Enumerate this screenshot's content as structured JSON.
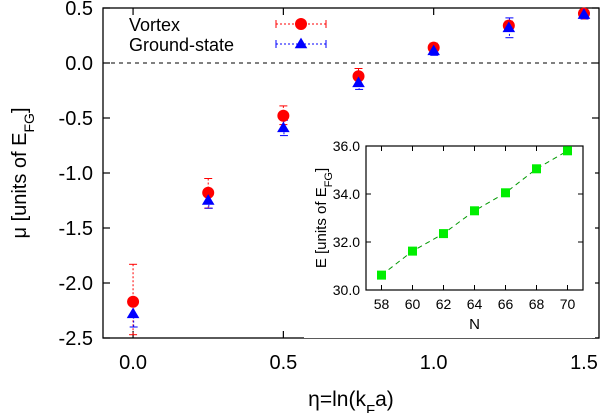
{
  "chart_data": [
    {
      "type": "scatter",
      "title": "",
      "xlabel": {
        "main": "η=ln(k",
        "sub": "F",
        "tail": "a)"
      },
      "ylabel": {
        "main": "μ [units of E",
        "sub": "FG",
        "tail": "]"
      },
      "xlim": [
        -0.1,
        1.55
      ],
      "ylim": [
        -2.5,
        0.5
      ],
      "xticks": [
        0.0,
        0.5,
        1.0,
        1.5
      ],
      "xtick_labels": [
        "0.0",
        "0.5",
        "1.0",
        "1.5"
      ],
      "yticks": [
        0.5,
        0.0,
        -0.5,
        -1.0,
        -1.5,
        -2.0,
        -2.5
      ],
      "ytick_labels": [
        "0.5",
        "0.0",
        "-0.5",
        "-1.0",
        "-1.5",
        "-2.0",
        "-2.5"
      ],
      "reference_line": {
        "y": 0.0,
        "style": "dashed"
      },
      "legend_position": "top-left",
      "series": [
        {
          "name": "Vortex",
          "color": "#ff0000",
          "marker": "circle",
          "x": [
            0.0,
            0.25,
            0.5,
            0.75,
            1.0,
            1.25,
            1.5
          ],
          "y": [
            -2.17,
            -1.18,
            -0.48,
            -0.12,
            0.14,
            0.34,
            0.45
          ],
          "err_low": [
            -2.47,
            -1.32,
            -0.56,
            -0.2,
            0.1,
            0.3,
            0.42
          ],
          "err_high": [
            -1.83,
            -1.05,
            -0.39,
            -0.05,
            0.18,
            0.38,
            0.48
          ]
        },
        {
          "name": "Ground-state",
          "color": "#0000ff",
          "marker": "triangle",
          "x": [
            0.0,
            0.25,
            0.5,
            0.75,
            1.0,
            1.25,
            1.5
          ],
          "y": [
            -2.28,
            -1.25,
            -0.59,
            -0.18,
            0.11,
            0.32,
            0.44
          ],
          "err_low": [
            -2.4,
            -1.32,
            -0.66,
            -0.24,
            0.07,
            0.23,
            0.4
          ],
          "err_high": [
            -2.16,
            -1.18,
            -0.52,
            -0.12,
            0.15,
            0.41,
            0.48
          ]
        }
      ]
    },
    {
      "type": "line",
      "title": "",
      "xlabel": {
        "main": "N",
        "sub": "",
        "tail": ""
      },
      "ylabel": {
        "main": "E [units of E",
        "sub": "FG",
        "tail": "]"
      },
      "xlim": [
        57,
        71
      ],
      "ylim": [
        30.0,
        36.0
      ],
      "xticks": [
        58,
        60,
        62,
        64,
        66,
        68,
        70
      ],
      "xtick_labels": [
        "58",
        "60",
        "62",
        "64",
        "66",
        "68",
        "70"
      ],
      "yticks": [
        36.0,
        34.0,
        32.0,
        30.0
      ],
      "ytick_labels": [
        "36.0",
        "34.0",
        "32.0",
        "30.0"
      ],
      "series": [
        {
          "name": "",
          "color": "#00ee00",
          "line_color": "#009900",
          "marker": "square",
          "x": [
            58,
            60,
            62,
            64,
            66,
            68,
            70
          ],
          "y": [
            30.62,
            31.62,
            32.35,
            33.3,
            34.05,
            35.05,
            35.8
          ]
        }
      ]
    }
  ]
}
